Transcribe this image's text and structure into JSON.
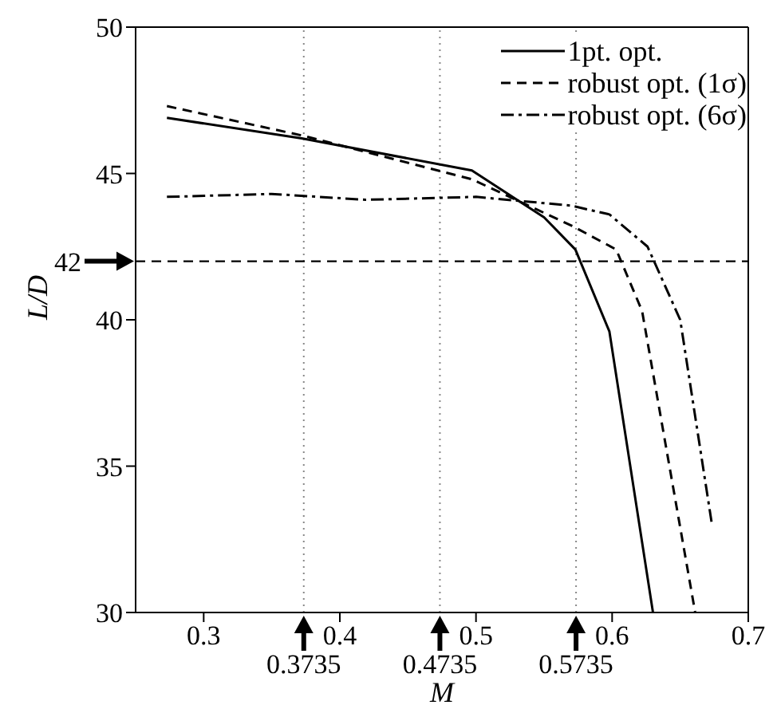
{
  "chart_data": {
    "type": "line",
    "xlabel": "M",
    "ylabel": "L/D",
    "xlim": [
      0.25,
      0.7
    ],
    "ylim": [
      30,
      50
    ],
    "xticks": [
      0.3,
      0.4,
      0.5,
      0.6,
      0.7
    ],
    "yticks": [
      30,
      35,
      40,
      45,
      50
    ],
    "legend": "top right",
    "marker": "none",
    "series": [
      {
        "name": "1pt. opt.",
        "color": "#000000",
        "line_style": "solid",
        "x": [
          0.273,
          0.372,
          0.497,
          0.55,
          0.573,
          0.598,
          0.63
        ],
        "values": [
          46.9,
          46.2,
          45.1,
          43.5,
          42.4,
          39.6,
          30
        ]
      },
      {
        "name": "robust opt. (1σ)",
        "color": "#000000",
        "line_style": "dashed",
        "x": [
          0.273,
          0.372,
          0.497,
          0.571,
          0.603,
          0.622,
          0.661
        ],
        "values": [
          47.3,
          46.3,
          44.8,
          43.2,
          42.4,
          40.3,
          30
        ]
      },
      {
        "name": "robust opt. (6σ)",
        "color": "#000000",
        "line_style": "dashdot",
        "x": [
          0.273,
          0.35,
          0.419,
          0.5,
          0.57,
          0.598,
          0.626,
          0.65,
          0.673
        ],
        "values": [
          44.2,
          44.3,
          44.1,
          44.2,
          43.9,
          43.6,
          42.5,
          40.0,
          33.1
        ]
      }
    ],
    "ref_lines": [
      {
        "axis": "x",
        "value": 0.3735,
        "label": "0.3735",
        "color": "#888888",
        "line_style": "dotted"
      },
      {
        "axis": "x",
        "value": 0.4735,
        "label": "0.4735",
        "color": "#888888",
        "line_style": "dotted"
      },
      {
        "axis": "x",
        "value": 0.5735,
        "label": "0.5735",
        "color": "#888888",
        "line_style": "dotted"
      },
      {
        "axis": "y",
        "value": 42,
        "label": "42",
        "color": "#000000",
        "line_style": "dashed"
      }
    ]
  }
}
